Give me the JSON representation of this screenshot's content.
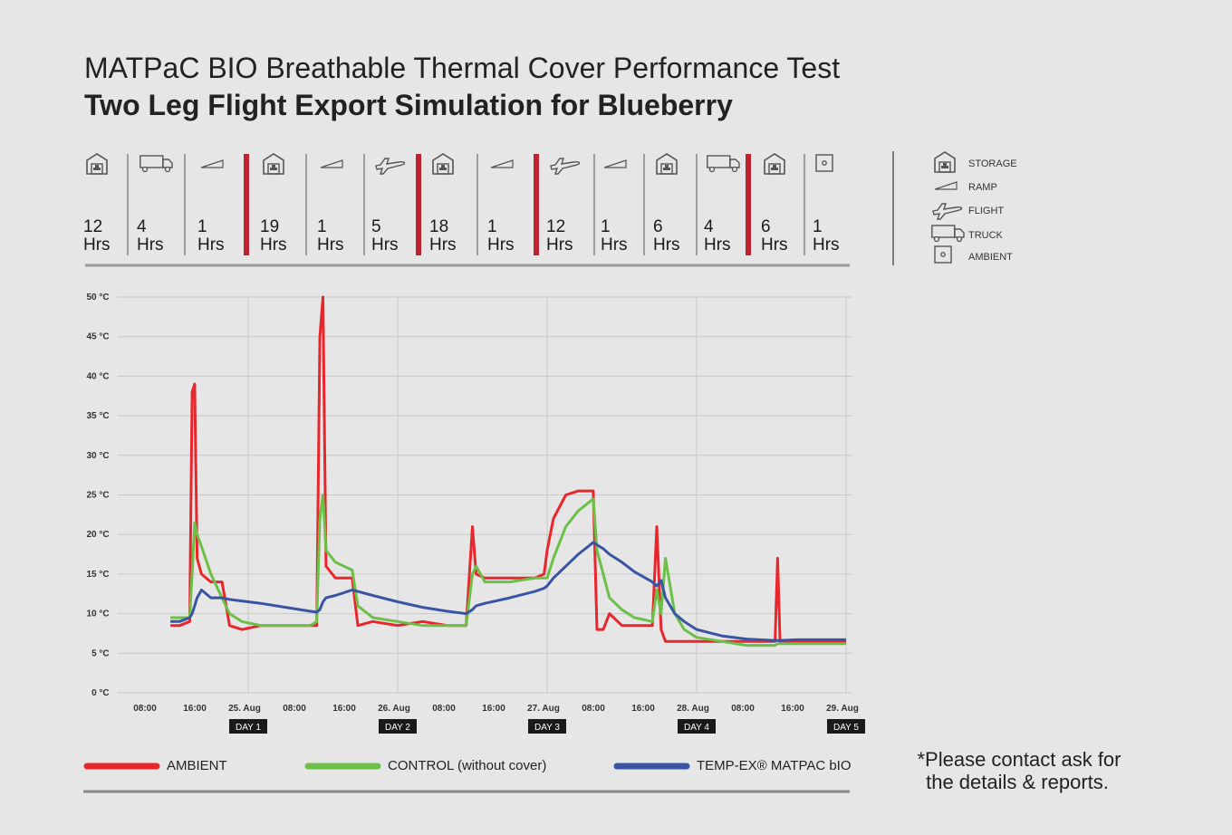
{
  "header": {
    "title": "MATPaC BIO Breathable Thermal Cover Performance Test",
    "subtitle": "Two Leg Flight Export Simulation for Blueberry"
  },
  "timeline": {
    "unit": "Hrs",
    "segments": [
      12,
      4,
      1,
      19,
      1,
      5,
      18,
      1,
      12,
      1,
      6,
      4,
      6,
      1
    ]
  },
  "icon_legend": {
    "items": [
      "STORAGE",
      "RAMP",
      "FLIGHT",
      "TRUCK",
      "AMBIENT"
    ]
  },
  "chart_data": {
    "type": "line",
    "x": [
      11.5,
      13,
      14.6,
      15,
      15.4,
      15.8,
      16.5,
      18,
      19.8,
      21,
      23,
      26,
      30,
      34,
      35,
      35.5,
      36,
      36.5,
      38,
      40.7,
      41.6,
      44,
      48,
      52,
      56,
      59,
      60,
      60.6,
      62,
      66,
      70,
      71.5,
      72,
      73,
      75,
      77,
      79.4,
      80,
      81,
      82,
      84,
      86,
      88.9,
      89.6,
      90.3,
      91,
      92.5,
      94,
      96,
      100,
      104,
      108.6,
      109,
      109.4,
      112,
      116,
      120
    ],
    "xlim": [
      3,
      121
    ],
    "xticks": [
      {
        "value": 8,
        "label": "08:00"
      },
      {
        "value": 16,
        "label": "16:00"
      },
      {
        "value": 24,
        "label": "25. Aug"
      },
      {
        "value": 32,
        "label": "08:00"
      },
      {
        "value": 40,
        "label": "16:00"
      },
      {
        "value": 48,
        "label": "26. Aug"
      },
      {
        "value": 56,
        "label": "08:00"
      },
      {
        "value": 64,
        "label": "16:00"
      },
      {
        "value": 72,
        "label": "27. Aug"
      },
      {
        "value": 80,
        "label": "08:00"
      },
      {
        "value": 88,
        "label": "16:00"
      },
      {
        "value": 96,
        "label": "28. Aug"
      },
      {
        "value": 104,
        "label": "08:00"
      },
      {
        "value": 112,
        "label": "16:00"
      },
      {
        "value": 120,
        "label": "29. Aug"
      }
    ],
    "ylim": [
      0,
      50
    ],
    "yticks": [
      {
        "value": 0,
        "label": "0 °C"
      },
      {
        "value": 5,
        "label": "5 °C"
      },
      {
        "value": 10,
        "label": "10 °C"
      },
      {
        "value": 15,
        "label": "15 °C"
      },
      {
        "value": 20,
        "label": "20 °C"
      },
      {
        "value": 25,
        "label": "25 °C"
      },
      {
        "value": 30,
        "label": "30 °C"
      },
      {
        "value": 35,
        "label": "35 °C"
      },
      {
        "value": 40,
        "label": "40 °C"
      },
      {
        "value": 45,
        "label": "45 °C"
      },
      {
        "value": 50,
        "label": "50 °C"
      }
    ],
    "grid": true,
    "annotations": [
      {
        "x": 24,
        "label": "DAY 1"
      },
      {
        "x": 48,
        "label": "DAY 2"
      },
      {
        "x": 72,
        "label": "DAY 3"
      },
      {
        "x": 96,
        "label": "DAY 4"
      },
      {
        "x": 120,
        "label": "DAY 5"
      }
    ],
    "series": [
      {
        "name": "AMBIENT",
        "color": "#e8262b",
        "values": [
          8.5,
          8.5,
          9,
          38,
          39,
          17,
          15,
          14,
          14,
          8.5,
          8,
          8.5,
          8.5,
          8.5,
          8.5,
          45,
          50,
          16,
          14.5,
          14.5,
          8.5,
          9,
          8.5,
          9,
          8.5,
          8.5,
          21,
          15,
          14.5,
          14.5,
          14.5,
          15,
          18,
          22,
          25,
          25.5,
          25.5,
          8,
          8,
          10,
          8.5,
          8.5,
          8.5,
          21,
          8,
          6.5,
          6.5,
          6.5,
          6.5,
          6.5,
          6.5,
          6.5,
          17,
          6.5,
          6.5,
          6.5,
          6.5
        ]
      },
      {
        "name": "CONTROL (without cover)",
        "color": "#6cbf47",
        "values": [
          9.5,
          9.5,
          9.5,
          15,
          21.5,
          20,
          18.5,
          15,
          12,
          10,
          9,
          8.5,
          8.5,
          8.5,
          9,
          22,
          25,
          18,
          16.5,
          15.5,
          11,
          9.5,
          9,
          8.5,
          8.5,
          8.5,
          15,
          16,
          14,
          14,
          14.5,
          14.5,
          14.5,
          17,
          21,
          23,
          24.5,
          18,
          15,
          12,
          10.5,
          9.5,
          9,
          13,
          10,
          17,
          10,
          8,
          7,
          6.5,
          6,
          6,
          6.2,
          6.2,
          6.2,
          6.2,
          6.2
        ]
      },
      {
        "name": "TEMP-EX® MATPAC bIO",
        "color": "#3a54a4",
        "values": [
          9,
          9,
          9.5,
          10,
          11,
          12,
          13,
          12,
          12,
          11.8,
          11.6,
          11.3,
          10.8,
          10.3,
          10.2,
          10.5,
          11.5,
          12,
          12.3,
          13,
          12.8,
          12.3,
          11.5,
          10.8,
          10.3,
          10,
          10.5,
          11,
          11.3,
          12,
          12.8,
          13.2,
          13.5,
          14.5,
          16,
          17.5,
          19,
          18.7,
          18.2,
          17.5,
          16.5,
          15.3,
          14,
          13.5,
          14.2,
          12,
          10,
          9,
          8,
          7.2,
          6.8,
          6.6,
          6.6,
          6.6,
          6.7,
          6.7,
          6.7
        ]
      }
    ]
  },
  "footnote": {
    "lines": [
      "*Please contact ask for",
      "the details & reports."
    ]
  }
}
